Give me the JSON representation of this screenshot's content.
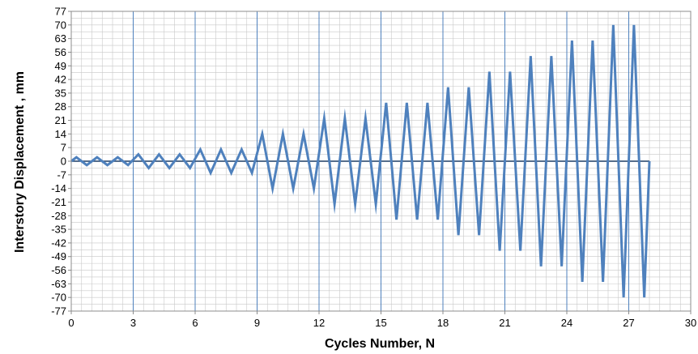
{
  "chart_data": {
    "type": "line",
    "title": "",
    "xlabel": "Cycles Number, N",
    "ylabel": "Interstory  Displacement , mm",
    "xlim": [
      0,
      30
    ],
    "ylim": [
      -77,
      77
    ],
    "x_ticks": [
      0,
      3,
      6,
      9,
      12,
      15,
      18,
      21,
      24,
      27,
      30
    ],
    "y_ticks": [
      77,
      70,
      63,
      56,
      49,
      42,
      35,
      28,
      21,
      14,
      7,
      0,
      -7,
      -14,
      -21,
      -28,
      -35,
      -42,
      -49,
      -56,
      -63,
      -70,
      -77
    ],
    "grid": true,
    "legend": "none",
    "colors": {
      "series": "#4F81BD",
      "baseline": "#1F3F66",
      "major_grid": "#4F81BD",
      "minor_grid": "#C8C8C8"
    },
    "series": [
      {
        "x": [
          0,
          0.25,
          0.75,
          1.25,
          1.75,
          2.25,
          2.75,
          3.25,
          3.75,
          4.25,
          4.75,
          5.25,
          5.75,
          6.25,
          6.75,
          7.25,
          7.75,
          8.25,
          8.75,
          9.25,
          9.75,
          10.25,
          10.75,
          11.25,
          11.75,
          12.25,
          12.75,
          13.25,
          13.75,
          14.25,
          14.75,
          15.25,
          15.75,
          16.25,
          16.75,
          17.25,
          17.75,
          18.25,
          18.75,
          19.25,
          19.75,
          20.25,
          20.75,
          21.25,
          21.75,
          22.25,
          22.75,
          23.25,
          23.75,
          24.25,
          24.75,
          25.25,
          25.75,
          26.25,
          26.75,
          27.25,
          27.75,
          28.0
        ],
        "values": [
          0,
          2,
          -2,
          2,
          -2,
          2,
          -2,
          3.5,
          -3.5,
          3.5,
          -3.5,
          3.5,
          -3.5,
          6,
          -6,
          6,
          -6,
          6,
          -6,
          14,
          -14,
          14,
          -14,
          14,
          -14,
          22,
          -22,
          22,
          -22,
          22,
          -22,
          30,
          -30,
          30,
          -30,
          30,
          -30,
          38,
          -38,
          38,
          -38,
          46,
          -46,
          46,
          -46,
          54,
          -54,
          54,
          -54,
          62,
          -62,
          62,
          -62,
          70,
          -70,
          70,
          -70,
          0
        ]
      }
    ]
  }
}
